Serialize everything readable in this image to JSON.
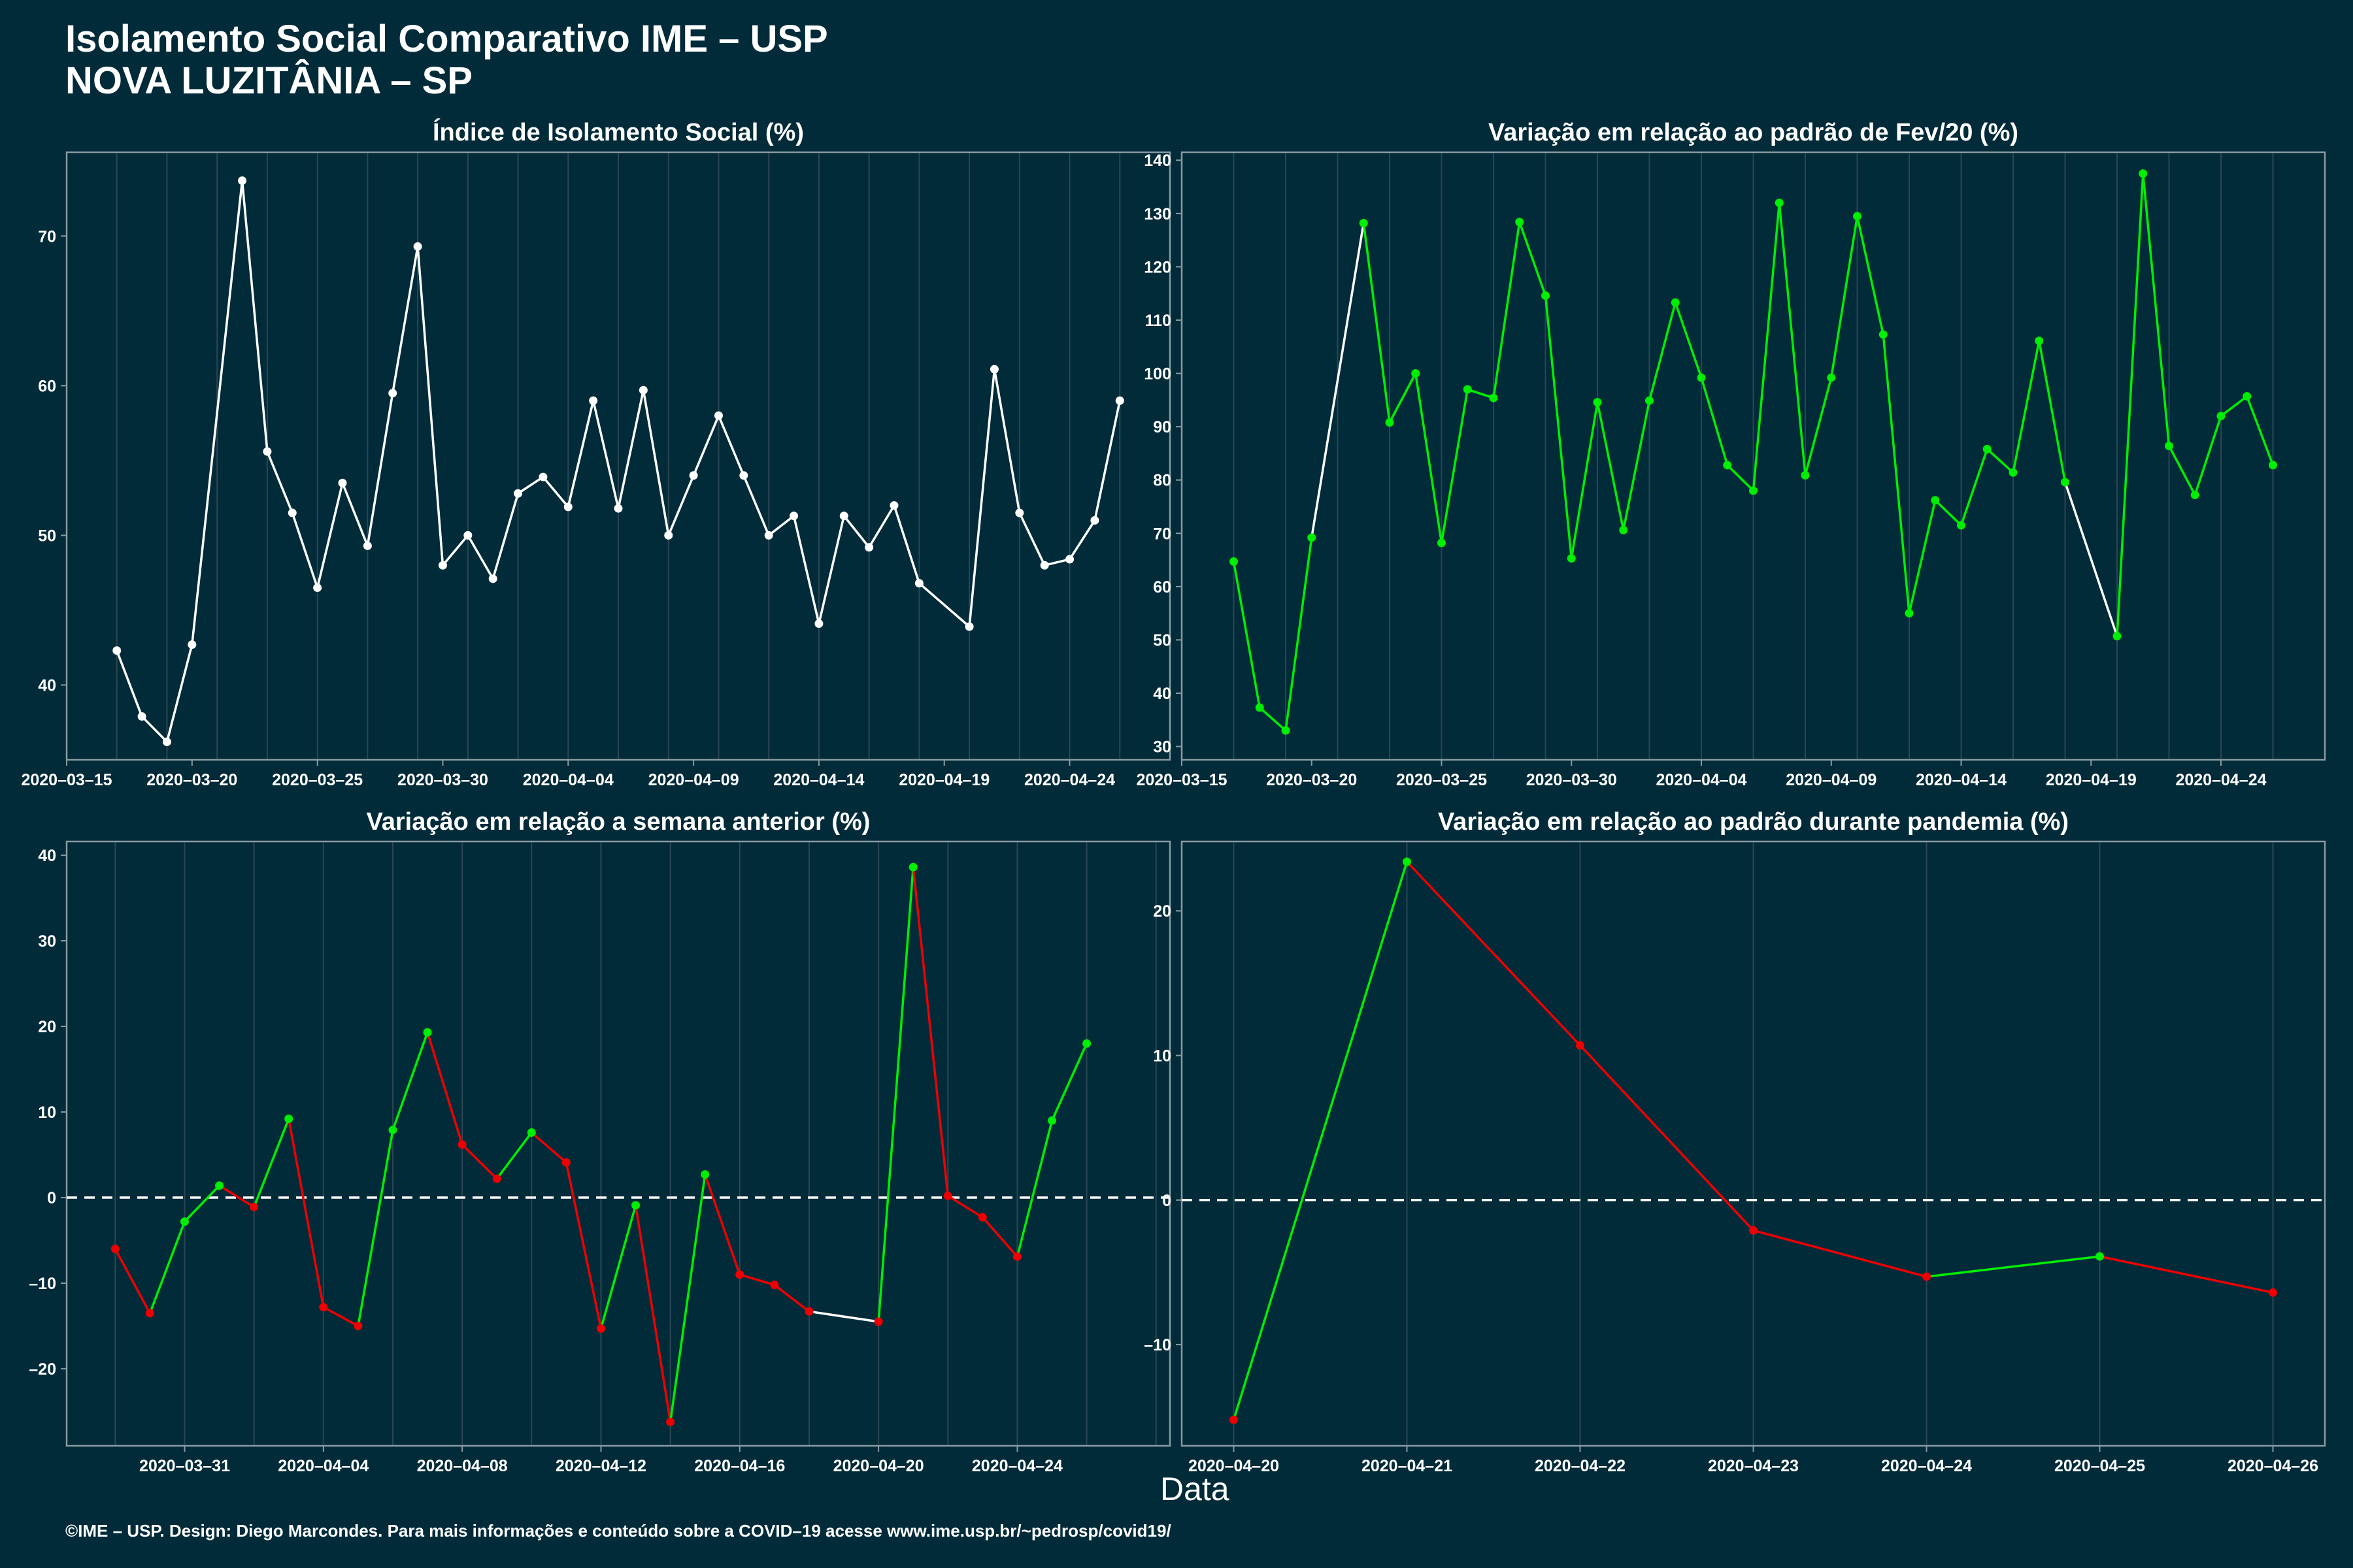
{
  "header": {
    "title_line1": "Isolamento Social Comparativo IME – USP",
    "title_line2": "NOVA LUZITÂNIA – SP"
  },
  "footer": "©IME – USP. Design: Diego Marcondes. Para mais informações e conteúdo sobre a COVID–19 acesse www.ime.usp.br/~pedrosp/covid19/",
  "x_axis_title": "Data",
  "colors": {
    "background": "#022b3a",
    "white": "#ffffff",
    "green": "#00ee00",
    "red": "#ee0000",
    "grid": "#2b4652",
    "frame": "#8a9aa0"
  },
  "chart_data": [
    {
      "type": "line",
      "title": "Índice de Isolamento Social (%)",
      "ylim": [
        35,
        75.6
      ],
      "yticks": [
        40,
        50,
        60,
        70
      ],
      "xlim": [
        "2020-03-15",
        "2020-04-28"
      ],
      "xticks": [
        "2020-03-15",
        "2020-03-20",
        "2020-03-25",
        "2020-03-30",
        "2020-04-04",
        "2020-04-09",
        "2020-04-14",
        "2020-04-19",
        "2020-04-24"
      ],
      "points": [
        [
          "2020-03-17",
          42.3
        ],
        [
          "2020-03-18",
          37.9
        ],
        [
          "2020-03-19",
          36.2
        ],
        [
          "2020-03-20",
          42.7
        ],
        [
          "2020-03-22",
          73.7
        ],
        [
          "2020-03-23",
          55.6
        ],
        [
          "2020-03-24",
          51.5
        ],
        [
          "2020-03-25",
          46.5
        ],
        [
          "2020-03-26",
          53.5
        ],
        [
          "2020-03-27",
          49.3
        ],
        [
          "2020-03-28",
          59.5
        ],
        [
          "2020-03-29",
          69.3
        ],
        [
          "2020-03-30",
          48.0
        ],
        [
          "2020-03-31",
          50.0
        ],
        [
          "2020-04-01",
          47.1
        ],
        [
          "2020-04-02",
          52.8
        ],
        [
          "2020-04-03",
          53.9
        ],
        [
          "2020-04-04",
          51.9
        ],
        [
          "2020-04-05",
          59.0
        ],
        [
          "2020-04-06",
          51.8
        ],
        [
          "2020-04-07",
          59.7
        ],
        [
          "2020-04-08",
          50.0
        ],
        [
          "2020-04-09",
          54.0
        ],
        [
          "2020-04-10",
          58.0
        ],
        [
          "2020-04-11",
          54.0
        ],
        [
          "2020-04-12",
          50.0
        ],
        [
          "2020-04-13",
          51.3
        ],
        [
          "2020-04-14",
          44.1
        ],
        [
          "2020-04-15",
          51.3
        ],
        [
          "2020-04-16",
          49.2
        ],
        [
          "2020-04-17",
          52.0
        ],
        [
          "2020-04-18",
          46.8
        ],
        [
          "2020-04-20",
          43.9
        ],
        [
          "2020-04-21",
          61.1
        ],
        [
          "2020-04-22",
          51.5
        ],
        [
          "2020-04-23",
          48.0
        ],
        [
          "2020-04-24",
          48.4
        ],
        [
          "2020-04-25",
          51.0
        ],
        [
          "2020-04-26",
          59.0
        ]
      ]
    },
    {
      "type": "line",
      "title": "Variação em relação ao padrão de Fev/20 (%)",
      "ylim": [
        27.5,
        141.5
      ],
      "yticks": [
        30,
        40,
        50,
        60,
        70,
        80,
        90,
        100,
        110,
        120,
        130,
        140
      ],
      "xlim": [
        "2020-03-15",
        "2020-04-28"
      ],
      "xticks": [
        "2020-03-15",
        "2020-03-20",
        "2020-03-25",
        "2020-03-30",
        "2020-04-04",
        "2020-04-09",
        "2020-04-14",
        "2020-04-19",
        "2020-04-24"
      ],
      "points": [
        [
          "2020-03-17",
          64.7
        ],
        [
          "2020-03-18",
          37.3
        ],
        [
          "2020-03-19",
          33.0
        ],
        [
          "2020-03-20",
          69.2
        ],
        [
          "2020-03-22",
          128.2
        ],
        [
          "2020-03-23",
          90.8
        ],
        [
          "2020-03-24",
          100.0
        ],
        [
          "2020-03-25",
          68.2
        ],
        [
          "2020-03-26",
          97.0
        ],
        [
          "2020-03-27",
          95.4
        ],
        [
          "2020-03-28",
          128.4
        ],
        [
          "2020-03-29",
          114.6
        ],
        [
          "2020-03-30",
          65.3
        ],
        [
          "2020-03-31",
          94.6
        ],
        [
          "2020-04-01",
          70.6
        ],
        [
          "2020-04-02",
          94.9
        ],
        [
          "2020-04-03",
          113.3
        ],
        [
          "2020-04-04",
          99.2
        ],
        [
          "2020-04-05",
          82.8
        ],
        [
          "2020-04-06",
          78.0
        ],
        [
          "2020-04-07",
          132.0
        ],
        [
          "2020-04-08",
          80.9
        ],
        [
          "2020-04-09",
          99.2
        ],
        [
          "2020-04-10",
          129.5
        ],
        [
          "2020-04-11",
          107.3
        ],
        [
          "2020-04-12",
          55.0
        ],
        [
          "2020-04-13",
          76.2
        ],
        [
          "2020-04-14",
          71.5
        ],
        [
          "2020-04-15",
          85.8
        ],
        [
          "2020-04-16",
          81.4
        ],
        [
          "2020-04-17",
          106.1
        ],
        [
          "2020-04-18",
          79.6
        ],
        [
          "2020-04-20",
          50.7
        ],
        [
          "2020-04-21",
          137.5
        ],
        [
          "2020-04-22",
          86.4
        ],
        [
          "2020-04-23",
          77.2
        ],
        [
          "2020-04-24",
          92.0
        ],
        [
          "2020-04-25",
          95.7
        ],
        [
          "2020-04-26",
          82.8
        ]
      ]
    },
    {
      "type": "line",
      "title": "Variação em relação a semana anterior (%)",
      "ylim": [
        -29,
        41.6
      ],
      "yticks": [
        -20,
        -10,
        0,
        10,
        20,
        30,
        40
      ],
      "zero_line": true,
      "xlim": [
        "2020-03-27.6",
        "2020-04-28.4"
      ],
      "xticks": [
        "2020-03-31",
        "2020-04-04",
        "2020-04-08",
        "2020-04-12",
        "2020-04-16",
        "2020-04-20",
        "2020-04-24"
      ],
      "points": [
        [
          "2020-03-29",
          -6.0
        ],
        [
          "2020-03-30",
          -13.5
        ],
        [
          "2020-03-31",
          -2.8
        ],
        [
          "2020-04-01",
          1.4
        ],
        [
          "2020-04-02",
          -1.1
        ],
        [
          "2020-04-03",
          9.2
        ],
        [
          "2020-04-04",
          -12.8
        ],
        [
          "2020-04-05",
          -15.0
        ],
        [
          "2020-04-06",
          7.9
        ],
        [
          "2020-04-07",
          19.3
        ],
        [
          "2020-04-08",
          6.2
        ],
        [
          "2020-04-09",
          2.2
        ],
        [
          "2020-04-10",
          7.6
        ],
        [
          "2020-04-11",
          4.1
        ],
        [
          "2020-04-12",
          -15.3
        ],
        [
          "2020-04-13",
          -0.9
        ],
        [
          "2020-04-14",
          -26.2
        ],
        [
          "2020-04-15",
          2.7
        ],
        [
          "2020-04-16",
          -9.0
        ],
        [
          "2020-04-17",
          -10.2
        ],
        [
          "2020-04-18",
          -13.3
        ],
        [
          "2020-04-20",
          -14.5
        ],
        [
          "2020-04-21",
          38.6
        ],
        [
          "2020-04-22",
          0.2
        ],
        [
          "2020-04-23",
          -2.3
        ],
        [
          "2020-04-24",
          -6.9
        ],
        [
          "2020-04-25",
          9.0
        ],
        [
          "2020-04-26",
          18.0
        ]
      ]
    },
    {
      "type": "line",
      "title": "Variação em relação ao padrão durante pandemia (%)",
      "ylim": [
        -17,
        24.8
      ],
      "yticks": [
        -10,
        0,
        10,
        20
      ],
      "zero_line": true,
      "xlim": [
        "2020-04-19.7",
        "2020-04-26.3"
      ],
      "xticks": [
        "2020-04-20",
        "2020-04-21",
        "2020-04-22",
        "2020-04-23",
        "2020-04-24",
        "2020-04-25",
        "2020-04-26"
      ],
      "points": [
        [
          "2020-04-20",
          -15.2
        ],
        [
          "2020-04-21",
          23.4
        ],
        [
          "2020-04-22",
          10.7
        ],
        [
          "2020-04-23",
          -2.1
        ],
        [
          "2020-04-24",
          -5.3
        ],
        [
          "2020-04-25",
          -3.9
        ],
        [
          "2020-04-26",
          -6.4
        ]
      ]
    }
  ]
}
